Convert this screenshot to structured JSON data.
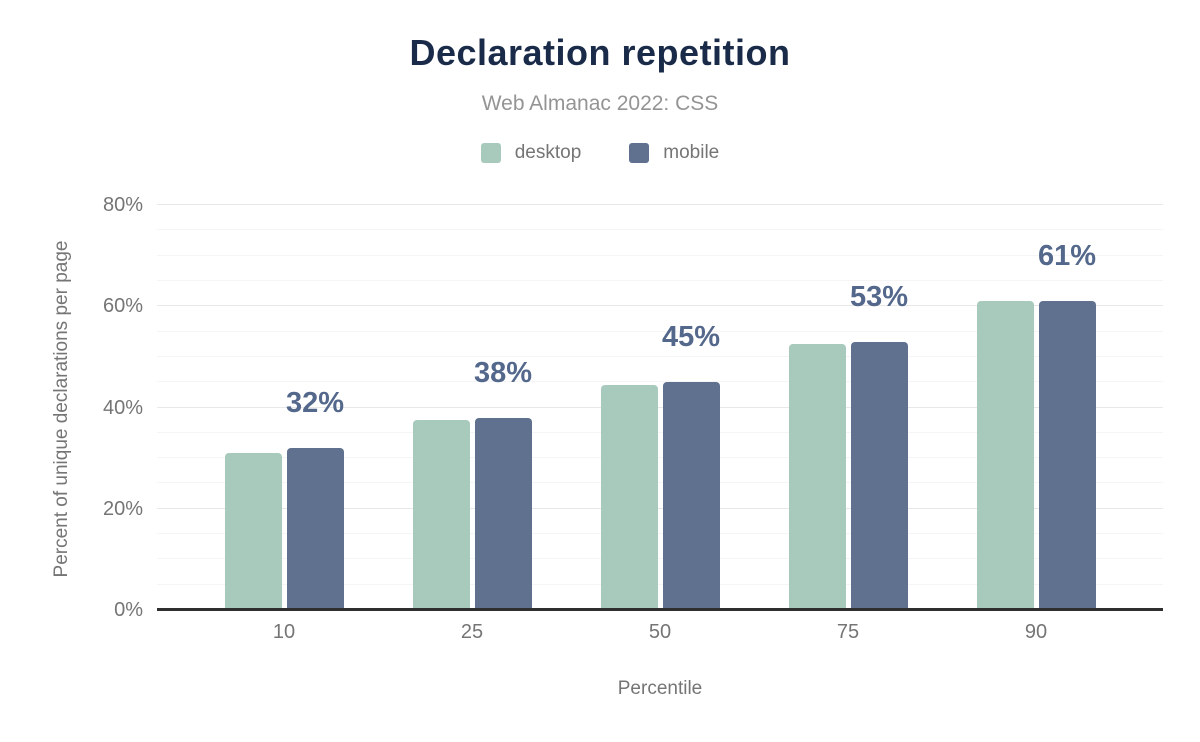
{
  "chart_data": {
    "type": "bar",
    "title": "Declaration repetition",
    "subtitle": "Web Almanac 2022: CSS",
    "xlabel": "Percentile",
    "ylabel": "Percent of unique declarations per page",
    "categories": [
      "10",
      "25",
      "50",
      "75",
      "90"
    ],
    "series": [
      {
        "name": "desktop",
        "color": "#a8cabc",
        "values": [
          31,
          37.5,
          44.5,
          52.5,
          61
        ]
      },
      {
        "name": "mobile",
        "color": "#5f718e",
        "values": [
          32,
          38,
          45,
          53,
          61
        ]
      }
    ],
    "bar_labels": [
      "32%",
      "38%",
      "45%",
      "53%",
      "61%"
    ],
    "bar_labels_follow_series": "mobile",
    "ylim": [
      0,
      80
    ],
    "yticks": {
      "values": [
        0,
        20,
        40,
        60,
        80
      ],
      "labels": [
        "0%",
        "20%",
        "40%",
        "60%",
        "80%"
      ]
    },
    "minor_grid_step": 5,
    "grid": "horizontal",
    "legend_position": "top"
  },
  "colors": {
    "title": "#1a2b49",
    "subtitle": "#949494",
    "axis_text": "#757575",
    "bar_label": "#54688c",
    "axis_line": "#2f2f2f",
    "grid_major": "#e8e8e8",
    "grid_minor": "#f5f5f5",
    "background": "#ffffff"
  }
}
